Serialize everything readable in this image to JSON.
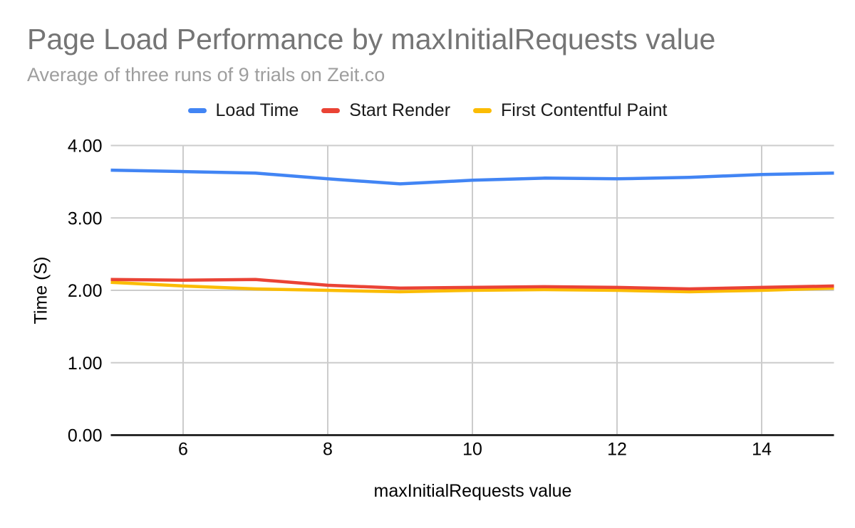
{
  "header": {
    "title": "Page Load Performance by maxInitialRequests value",
    "subtitle": "Average of three runs of 9 trials on Zeit.co"
  },
  "axes": {
    "x_title": "maxInitialRequests value",
    "y_title": "Time (S)",
    "y_tick_labels": [
      "0.00",
      "1.00",
      "2.00",
      "3.00",
      "4.00"
    ],
    "x_tick_labels": [
      "6",
      "8",
      "10",
      "12",
      "14"
    ]
  },
  "style_colors": {
    "title": "#757575",
    "subtitle": "#9e9e9e",
    "gridline": "#cccccc",
    "axis_line": "#2b2b2b",
    "tick_label": "#000000"
  },
  "chart_data": {
    "type": "line",
    "title": "Page Load Performance by maxInitialRequests value",
    "subtitle": "Average of three runs of 9 trials on Zeit.co",
    "xlabel": "maxInitialRequests value",
    "ylabel": "Time (S)",
    "x": [
      5,
      6,
      7,
      8,
      9,
      10,
      11,
      12,
      13,
      14,
      15
    ],
    "series": [
      {
        "name": "Load Time",
        "color": "#4285F4",
        "values": [
          3.66,
          3.64,
          3.62,
          3.54,
          3.47,
          3.52,
          3.55,
          3.54,
          3.56,
          3.6,
          3.62
        ]
      },
      {
        "name": "Start Render",
        "color": "#EA4335",
        "values": [
          2.15,
          2.14,
          2.15,
          2.07,
          2.03,
          2.04,
          2.05,
          2.04,
          2.02,
          2.04,
          2.06
        ]
      },
      {
        "name": "First Contentful Paint",
        "color": "#FBBC04",
        "values": [
          2.11,
          2.06,
          2.02,
          2.0,
          1.98,
          2.0,
          2.01,
          2.0,
          1.98,
          2.0,
          2.03
        ]
      }
    ],
    "xlim": [
      5,
      15
    ],
    "ylim": [
      0,
      4
    ],
    "x_ticks": [
      6,
      8,
      10,
      12,
      14
    ],
    "y_ticks": [
      0,
      1,
      2,
      3,
      4
    ],
    "grid": true,
    "legend_position": "top"
  }
}
